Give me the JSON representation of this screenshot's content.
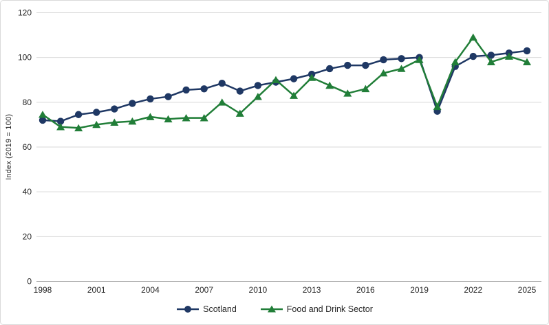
{
  "figure": {
    "background": "#ffffff",
    "border_color": "#d9d9d9",
    "gridline_color": "#d9d9d9",
    "axis_line_color": "#a6a6a6",
    "text_color": "#262626",
    "scotland_color": "#1f3864",
    "food_drink_color": "#217e38"
  },
  "y_axis": {
    "title": "Index (2019 = 100)",
    "ticks": [
      0,
      20,
      40,
      60,
      80,
      100,
      120
    ]
  },
  "x_axis": {
    "tick_years": [
      1998,
      2001,
      2004,
      2007,
      2010,
      2013,
      2016,
      2019,
      2022,
      2025
    ]
  },
  "legend": {
    "items": [
      {
        "label": "Scotland",
        "marker": "circle",
        "color": "#1f3864"
      },
      {
        "label": "Food and Drink Sector",
        "marker": "triangle",
        "color": "#217e38"
      }
    ]
  },
  "chart_data": {
    "type": "line",
    "title": "",
    "xlabel": "",
    "ylabel": "Index (2019 = 100)",
    "ylim": [
      0,
      120
    ],
    "xlim": [
      1998,
      2025
    ],
    "grid": true,
    "legend_position": "bottom",
    "x": [
      1998,
      1999,
      2000,
      2001,
      2002,
      2003,
      2004,
      2005,
      2006,
      2007,
      2008,
      2009,
      2010,
      2011,
      2012,
      2013,
      2014,
      2015,
      2016,
      2017,
      2018,
      2019,
      2020,
      2021,
      2022,
      2023,
      2024,
      2025
    ],
    "series": [
      {
        "name": "Scotland",
        "marker": "circle",
        "color": "#1f3864",
        "values": [
          72,
          71.5,
          74.5,
          75.5,
          77,
          79.5,
          81.5,
          82.5,
          85.5,
          86,
          88.5,
          85,
          87.5,
          89,
          90.5,
          92.5,
          95,
          96.5,
          96.5,
          99,
          99.5,
          100,
          76,
          96,
          100.5,
          101,
          102,
          103
        ]
      },
      {
        "name": "Food and Drink Sector",
        "marker": "triangle",
        "color": "#217e38",
        "values": [
          74.5,
          69,
          68.5,
          70,
          71,
          71.5,
          73.5,
          72.5,
          73,
          73,
          80,
          75,
          82.5,
          90,
          83,
          91,
          87.5,
          84,
          86,
          93,
          95,
          99,
          78,
          98,
          109,
          98,
          100.5,
          98
        ]
      }
    ]
  }
}
